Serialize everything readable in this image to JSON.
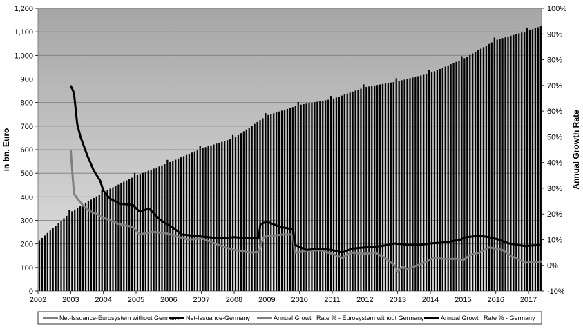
{
  "chart_data": {
    "type": "bar",
    "title": "",
    "ylabel": "in bn. Euro",
    "y2label": "Annual Growth Rate",
    "ylim": [
      0,
      1200
    ],
    "y2lim": [
      -10,
      100
    ],
    "xlim": [
      2002,
      2017.4
    ],
    "grid": "horizontal",
    "legend_position": "bottom",
    "x_ticks": [
      "2002",
      "2003",
      "2004",
      "2005",
      "2006",
      "2007",
      "2008",
      "2009",
      "2010",
      "2011",
      "2012",
      "2013",
      "2014",
      "2015",
      "2016",
      "2017"
    ],
    "y_ticks": [
      "0",
      "100",
      "200",
      "300",
      "400",
      "500",
      "600",
      "700",
      "800",
      "900",
      "1,000",
      "1,100",
      "1,200"
    ],
    "y2_ticks": [
      "-10%",
      "0%",
      "10%",
      "20%",
      "30%",
      "40%",
      "50%",
      "60%",
      "70%",
      "80%",
      "90%",
      "100%"
    ],
    "colors": {
      "plot_top": "#a6a6a6",
      "plot_bottom": "#e4e4e4",
      "bar_germany": "#000000",
      "bar_euro_ex_germany": "#d0d0d0",
      "line_germany": "#000000",
      "line_euro_ex_germany": "#7f7f7f"
    },
    "series": [
      {
        "name": "Net-Issuance-Eurosystem without Germany",
        "kind": "bar",
        "x": [
          2002.0,
          2003.0,
          2004.0,
          2005.0,
          2006.0,
          2007.0,
          2008.0,
          2009.0,
          2010.0,
          2011.0,
          2012.0,
          2013.0,
          2014.0,
          2015.0,
          2016.0,
          2017.0,
          2017.4
        ],
        "values": [
          160,
          215,
          260,
          300,
          330,
          355,
          375,
          420,
          440,
          460,
          470,
          475,
          480,
          495,
          515,
          520,
          525
        ]
      },
      {
        "name": "Net-Issuance-Germany",
        "kind": "bar",
        "x": [
          2002.0,
          2003.0,
          2004.0,
          2005.0,
          2006.0,
          2007.0,
          2008.0,
          2009.0,
          2010.0,
          2011.0,
          2012.0,
          2013.0,
          2014.0,
          2015.0,
          2016.0,
          2017.0,
          2017.4
        ],
        "values": [
          210,
          335,
          420,
          490,
          545,
          605,
          650,
          745,
          790,
          815,
          865,
          890,
          925,
          985,
          1065,
          1105,
          1125
        ]
      },
      {
        "name": "Annual Growth Rate % - Eurosystem without Germany",
        "kind": "line",
        "axis": "right",
        "x": [
          2003.0,
          2003.1,
          2003.2,
          2003.4,
          2003.6,
          2003.8,
          2004.0,
          2004.5,
          2004.9,
          2005.1,
          2005.5,
          2005.9,
          2006.2,
          2006.6,
          2007.0,
          2007.5,
          2008.0,
          2008.5,
          2008.75,
          2008.9,
          2009.1,
          2009.5,
          2009.8,
          2009.85,
          2010.2,
          2010.6,
          2011.0,
          2011.3,
          2011.6,
          2012.0,
          2012.3,
          2012.6,
          2012.9,
          2013.0,
          2013.15,
          2013.3,
          2013.6,
          2013.9,
          2014.1,
          2014.4,
          2014.8,
          2015.0,
          2015.2,
          2015.5,
          2015.8,
          2016.2,
          2016.5,
          2016.9,
          2017.4
        ],
        "values": [
          45,
          28,
          26,
          23,
          21,
          20,
          18.5,
          16,
          15,
          12,
          13,
          12.5,
          11.5,
          10,
          10.5,
          8,
          6,
          5,
          5.2,
          11,
          11.5,
          12,
          12,
          5,
          5.5,
          6,
          4.5,
          3,
          5,
          4.5,
          5,
          3,
          0,
          -2.5,
          -0.5,
          -1.5,
          0,
          1.5,
          3,
          2.5,
          2.5,
          2,
          4,
          5,
          7,
          6,
          3.5,
          1,
          1.5
        ]
      },
      {
        "name": "Annual Growth Rate % - Germany",
        "kind": "line",
        "axis": "right",
        "x": [
          2003.0,
          2003.1,
          2003.2,
          2003.3,
          2003.5,
          2003.7,
          2003.9,
          2004.0,
          2004.2,
          2004.5,
          2004.9,
          2005.1,
          2005.4,
          2005.8,
          2006.1,
          2006.4,
          2006.8,
          2007.2,
          2007.6,
          2008.0,
          2008.5,
          2008.75,
          2008.8,
          2009.0,
          2009.4,
          2009.8,
          2009.85,
          2010.2,
          2010.6,
          2011.0,
          2011.3,
          2011.6,
          2012.0,
          2012.5,
          2012.9,
          2013.3,
          2013.7,
          2014.0,
          2014.5,
          2014.9,
          2015.1,
          2015.5,
          2015.8,
          2016.1,
          2016.4,
          2016.9,
          2017.4
        ],
        "values": [
          70,
          67,
          55,
          50,
          43,
          37,
          33,
          29,
          26,
          24,
          23.5,
          21,
          22,
          17,
          15,
          12,
          11.5,
          11,
          10.5,
          11,
          10.5,
          10.5,
          16,
          17,
          15,
          14,
          8,
          6,
          6.5,
          6,
          5,
          6.5,
          7,
          7.5,
          8.5,
          8,
          8,
          8.5,
          9,
          10,
          11,
          11.5,
          11,
          10,
          8.5,
          7.5,
          8
        ]
      }
    ]
  }
}
